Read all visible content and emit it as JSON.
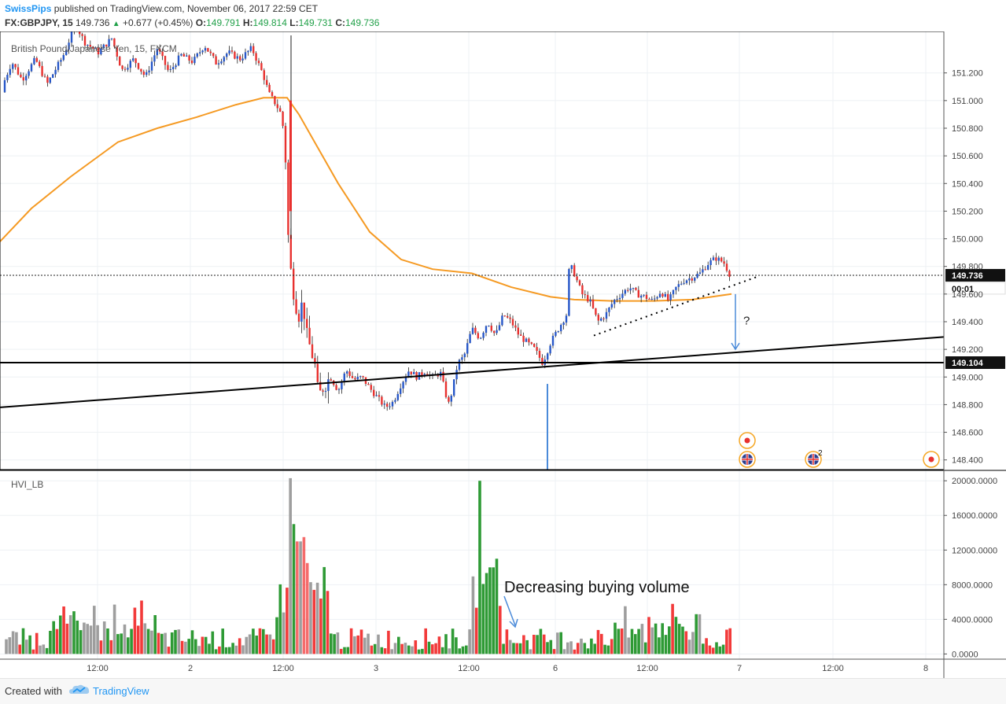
{
  "header": {
    "publisher": "SwissPips",
    "published_text": "published on TradingView.com, November 06, 2017 22:59 CET",
    "symbol": "FX:GBPJPY, 15",
    "last": "149.736",
    "change": "+0.677 (+0.45%)",
    "o_label": "O:",
    "o_value": "149.791",
    "h_label": "H:",
    "h_value": "149.814",
    "l_label": "L:",
    "l_value": "149.731",
    "c_label": "C:",
    "c_value": "149.736"
  },
  "footer": {
    "created_with": "Created with",
    "brand": "TradingView"
  },
  "chart_data": [
    {
      "type": "candlestick",
      "legend_text": "British Pound/Japanese Yen, 15, FXCM",
      "y_ticks": [
        148.4,
        148.6,
        148.8,
        149.0,
        149.2,
        149.4,
        149.6,
        149.8,
        150.0,
        150.2,
        150.4,
        150.6,
        150.8,
        151.0,
        151.2
      ],
      "y_tick_labels": [
        "148.400",
        "148.600",
        "148.800",
        "149.000",
        "149.200",
        "149.400",
        "149.600",
        "149.800",
        "150.000",
        "150.200",
        "150.400",
        "150.600",
        "150.800",
        "151.000",
        "151.200"
      ],
      "ylim": [
        148.33,
        151.5
      ],
      "price_line": {
        "value": 149.736,
        "label": "149.736",
        "countdown": "00:01"
      },
      "horizontal_line": {
        "value": 149.104,
        "label": "149.104"
      },
      "trend_line": {
        "start": 148.78,
        "end": 149.29
      },
      "path_points": [
        [
          0,
          151.06
        ],
        [
          15,
          151.28
        ],
        [
          28,
          151.15
        ],
        [
          45,
          151.3
        ],
        [
          60,
          151.12
        ],
        [
          80,
          151.32
        ],
        [
          96,
          151.55
        ],
        [
          108,
          151.42
        ],
        [
          125,
          151.35
        ],
        [
          142,
          151.45
        ],
        [
          155,
          151.22
        ],
        [
          170,
          151.3
        ],
        [
          185,
          151.17
        ],
        [
          200,
          151.38
        ],
        [
          215,
          151.2
        ],
        [
          230,
          151.33
        ],
        [
          245,
          151.28
        ],
        [
          260,
          151.4
        ],
        [
          275,
          151.27
        ],
        [
          290,
          151.35
        ],
        [
          305,
          151.3
        ],
        [
          320,
          151.38
        ],
        [
          335,
          151.18
        ],
        [
          342,
          151.05
        ],
        [
          350,
          150.98
        ],
        [
          356,
          150.92
        ],
        [
          362,
          150.75
        ],
        [
          366,
          150.05
        ],
        [
          370,
          149.75
        ],
        [
          375,
          149.55
        ],
        [
          380,
          149.45
        ],
        [
          385,
          149.55
        ],
        [
          390,
          149.3
        ],
        [
          395,
          149.2
        ],
        [
          400,
          149.1
        ],
        [
          405,
          148.85
        ],
        [
          410,
          148.92
        ],
        [
          420,
          149.0
        ],
        [
          430,
          148.9
        ],
        [
          440,
          149.05
        ],
        [
          450,
          148.98
        ],
        [
          460,
          149.0
        ],
        [
          470,
          148.92
        ],
        [
          480,
          148.85
        ],
        [
          490,
          148.78
        ],
        [
          500,
          148.82
        ],
        [
          510,
          148.95
        ],
        [
          520,
          149.05
        ],
        [
          530,
          149.0
        ],
        [
          540,
          149.04
        ],
        [
          550,
          149.0
        ],
        [
          560,
          149.03
        ],
        [
          570,
          148.8
        ],
        [
          575,
          148.9
        ],
        [
          582,
          149.1
        ],
        [
          590,
          149.15
        ],
        [
          600,
          149.35
        ],
        [
          610,
          149.28
        ],
        [
          620,
          149.4
        ],
        [
          630,
          149.3
        ],
        [
          640,
          149.45
        ],
        [
          650,
          149.4
        ],
        [
          660,
          149.3
        ],
        [
          670,
          149.25
        ],
        [
          680,
          149.2
        ],
        [
          690,
          149.1
        ],
        [
          700,
          149.25
        ],
        [
          710,
          149.35
        ],
        [
          720,
          149.45
        ],
        [
          724,
          149.82
        ],
        [
          730,
          149.75
        ],
        [
          740,
          149.6
        ],
        [
          750,
          149.55
        ],
        [
          760,
          149.4
        ],
        [
          770,
          149.45
        ],
        [
          780,
          149.55
        ],
        [
          790,
          149.6
        ],
        [
          800,
          149.65
        ],
        [
          810,
          149.6
        ],
        [
          820,
          149.58
        ],
        [
          830,
          149.55
        ],
        [
          840,
          149.62
        ],
        [
          850,
          149.55
        ],
        [
          860,
          149.65
        ],
        [
          870,
          149.7
        ],
        [
          880,
          149.72
        ],
        [
          890,
          149.75
        ],
        [
          900,
          149.82
        ],
        [
          910,
          149.86
        ],
        [
          920,
          149.83
        ],
        [
          928,
          149.74
        ]
      ],
      "moving_average": [
        [
          0,
          149.98
        ],
        [
          40,
          150.22
        ],
        [
          90,
          150.45
        ],
        [
          150,
          150.7
        ],
        [
          200,
          150.8
        ],
        [
          250,
          150.88
        ],
        [
          300,
          150.97
        ],
        [
          335,
          151.02
        ],
        [
          365,
          151.02
        ],
        [
          380,
          150.9
        ],
        [
          400,
          150.7
        ],
        [
          430,
          150.4
        ],
        [
          470,
          150.05
        ],
        [
          510,
          149.85
        ],
        [
          550,
          149.78
        ],
        [
          600,
          149.75
        ],
        [
          650,
          149.65
        ],
        [
          700,
          149.58
        ],
        [
          730,
          149.56
        ],
        [
          780,
          149.55
        ],
        [
          830,
          149.55
        ],
        [
          880,
          149.56
        ],
        [
          930,
          149.6
        ]
      ],
      "support_dotted": {
        "from": [
          755,
          149.3
        ],
        "to": [
          965,
          149.73
        ]
      },
      "arrow": {
        "x": 935,
        "from": 149.6,
        "to": 149.2
      },
      "question_mark": "?",
      "spike_line": {
        "x": 696,
        "from": 148.95,
        "to": 148.33
      },
      "event_badge_count": "2",
      "x_labels": [
        {
          "x": 124,
          "label": "12:00"
        },
        {
          "x": 242,
          "label": "2"
        },
        {
          "x": 360,
          "label": "12:00"
        },
        {
          "x": 478,
          "label": "3"
        },
        {
          "x": 596,
          "label": "12:00"
        },
        {
          "x": 706,
          "label": "6"
        },
        {
          "x": 823,
          "label": "12:00"
        },
        {
          "x": 940,
          "label": "7"
        },
        {
          "x": 1059,
          "label": "12:00"
        },
        {
          "x": 1177,
          "label": "8"
        }
      ]
    },
    {
      "type": "bar",
      "legend_text": "HVI_LB",
      "y_ticks": [
        0,
        4000,
        8000,
        12000,
        16000,
        20000
      ],
      "y_tick_labels": [
        "0.0000",
        "4000.0000",
        "8000.0000",
        "12000.0000",
        "16000.0000",
        "20000.0000"
      ],
      "ylim": [
        -600,
        21200
      ],
      "annotation": "Decreasing buying volume",
      "bars_summary": "volume bars colored green (buying), red (selling), gray (neutral)"
    }
  ]
}
